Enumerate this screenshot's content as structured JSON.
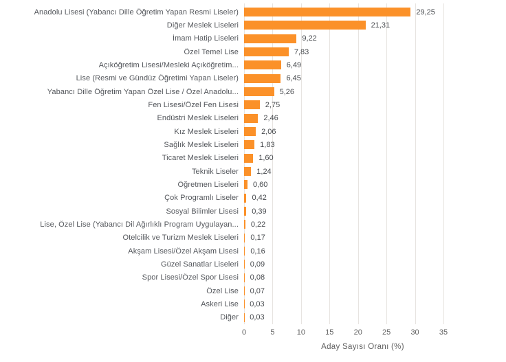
{
  "chart_data": {
    "type": "bar",
    "orientation": "horizontal",
    "title": "",
    "xlabel": "Aday Sayısı Oranı (%)",
    "ylabel": "",
    "xlim": [
      0,
      35
    ],
    "xticks": [
      0,
      5,
      10,
      15,
      20,
      25,
      30,
      35
    ],
    "grid": true,
    "categories": [
      "Anadolu Lisesi (Yabancı Dille Öğretim Yapan Resmi Liseler)",
      "Diğer Meslek Liseleri",
      "İmam Hatip Liseleri",
      "Özel Temel Lise",
      "Açıköğretim Lisesi/Mesleki Açıköğretim...",
      "Lise (Resmi ve Gündüz Öğretimi Yapan Liseler)",
      "Yabancı Dille Öğretim Yapan Özel Lise / Özel Anadolu...",
      "Fen Lisesi/Özel Fen Lisesi",
      "Endüstri Meslek Liseleri",
      "Kız Meslek Liseleri",
      "Sağlık Meslek Liseleri",
      "Ticaret Meslek Liseleri",
      "Teknik Liseler",
      "Öğretmen Liseleri",
      "Çok Programlı Liseler",
      "Sosyal Bilimler Lisesi",
      "Lise, Özel Lise (Yabancı Dil Ağırlıklı Program Uygulayan...",
      "Otelcilik ve Turizm Meslek Liseleri",
      "Akşam Lisesi/Özel Akşam Lisesi",
      "Güzel Sanatlar Liseleri",
      "Spor Lisesi/Özel Spor Lisesi",
      "Özel Lise",
      "Askeri Lise",
      "Diğer"
    ],
    "values": [
      29.25,
      21.31,
      9.22,
      7.83,
      6.49,
      6.45,
      5.26,
      2.75,
      2.46,
      2.06,
      1.83,
      1.6,
      1.24,
      0.6,
      0.42,
      0.39,
      0.22,
      0.17,
      0.16,
      0.09,
      0.08,
      0.07,
      0.03,
      0.03
    ],
    "value_labels": [
      "29,25",
      "21,31",
      "9,22",
      "7,83",
      "6,49",
      "6,45",
      "5,26",
      "2,75",
      "2,46",
      "2,06",
      "1,83",
      "1,60",
      "1,24",
      "0,60",
      "0,42",
      "0,39",
      "0,22",
      "0,17",
      "0,16",
      "0,09",
      "0,08",
      "0,07",
      "0,03",
      "0,03"
    ],
    "colors": {
      "bar": "#fb9129",
      "gridline": "#e7e4e1",
      "category_text": "#54575c",
      "value_text": "#46494d",
      "tick_text": "#5e5e5e",
      "axis_title_text": "#606060",
      "background": "#ffffff"
    },
    "legend": null
  }
}
